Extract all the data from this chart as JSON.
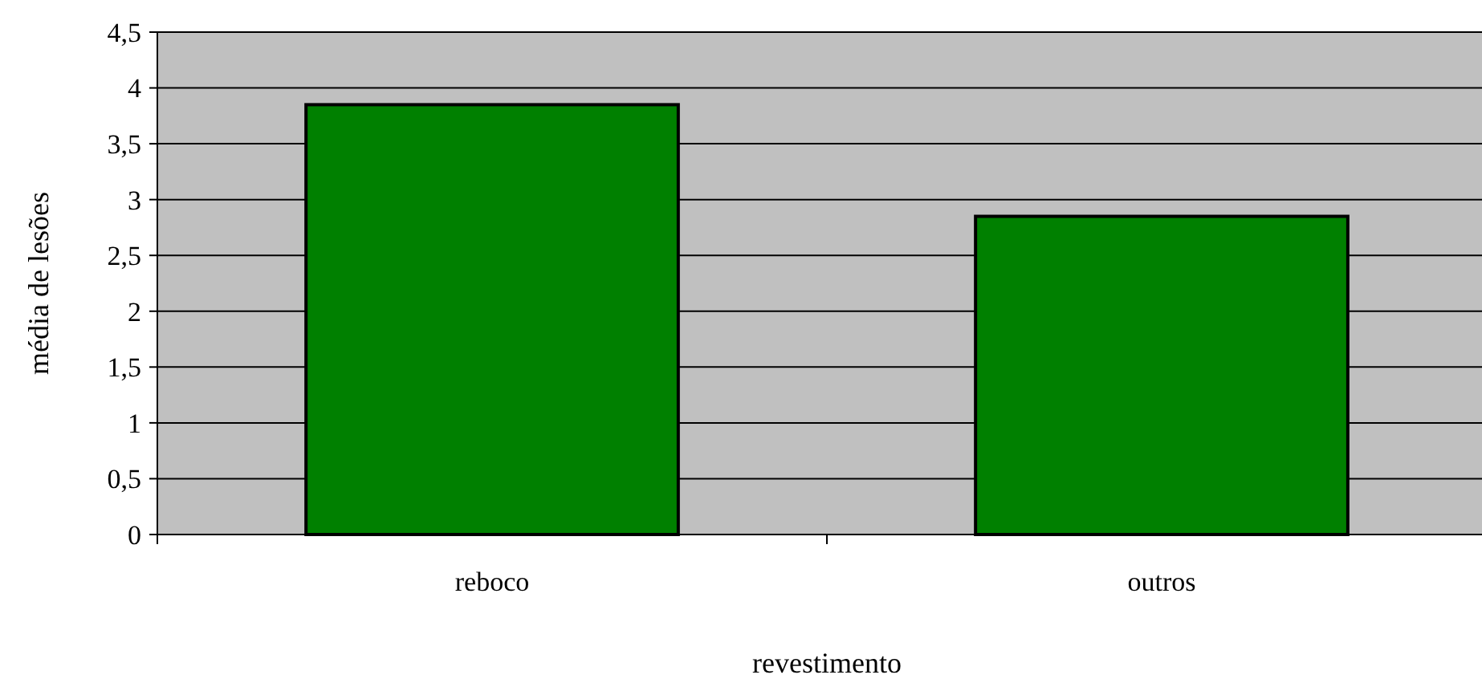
{
  "chart_data": {
    "type": "bar",
    "xlabel": "revestimento",
    "ylabel": "média de lesões",
    "categories": [
      "reboco",
      "outros"
    ],
    "values": [
      3.85,
      2.85
    ],
    "color": "#008000",
    "ylim": [
      0,
      4.5
    ],
    "yticks": [
      {
        "value": 0,
        "label": "0"
      },
      {
        "value": 0.5,
        "label": "0,5"
      },
      {
        "value": 1,
        "label": "1"
      },
      {
        "value": 1.5,
        "label": "1,5"
      },
      {
        "value": 2,
        "label": "2"
      },
      {
        "value": 2.5,
        "label": "2,5"
      },
      {
        "value": 3,
        "label": "3"
      },
      {
        "value": 3.5,
        "label": "3,5"
      },
      {
        "value": 4,
        "label": "4"
      },
      {
        "value": 4.5,
        "label": "4,5"
      }
    ],
    "grid": "y"
  }
}
